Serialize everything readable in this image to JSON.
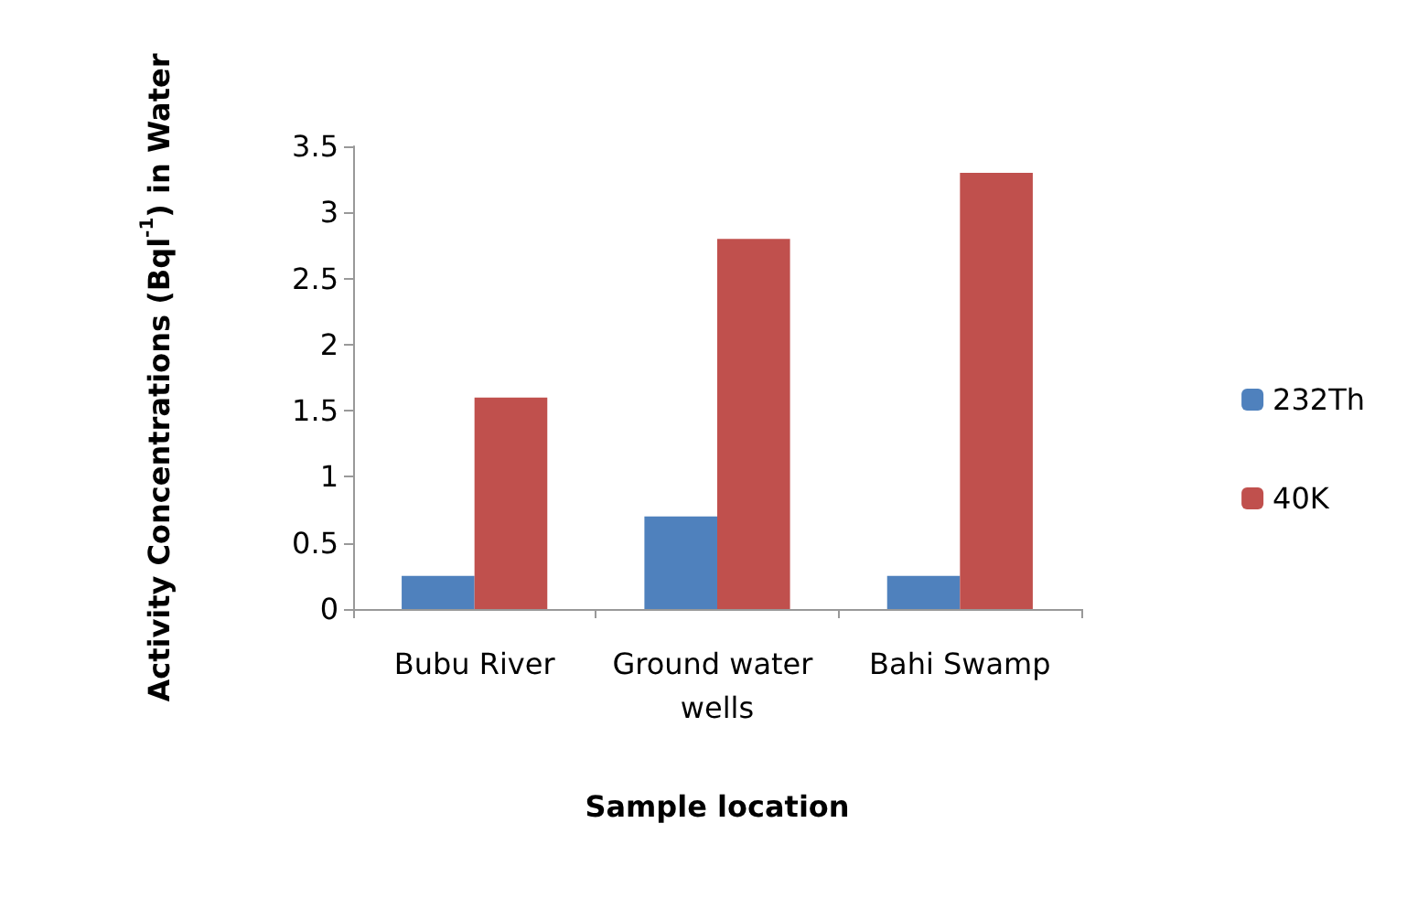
{
  "chart_data": {
    "type": "bar",
    "xlabel": "Sample location",
    "ylabel": "Activity Concentrations (Bql$^{-1}$) in Water",
    "categories": [
      "Bubu River",
      "Ground water wells",
      "Bahi Swamp"
    ],
    "series": [
      {
        "name": "232Th",
        "color": "#4f81bd",
        "values": [
          0.25,
          0.7,
          0.25
        ]
      },
      {
        "name": "40K",
        "color": "#c0504d",
        "values": [
          1.6,
          2.8,
          3.3
        ]
      }
    ],
    "ylim": [
      0,
      3.5
    ],
    "yticks": [
      0,
      0.5,
      1,
      1.5,
      2,
      2.5,
      3,
      3.5
    ],
    "grid": false,
    "legend": "right"
  }
}
